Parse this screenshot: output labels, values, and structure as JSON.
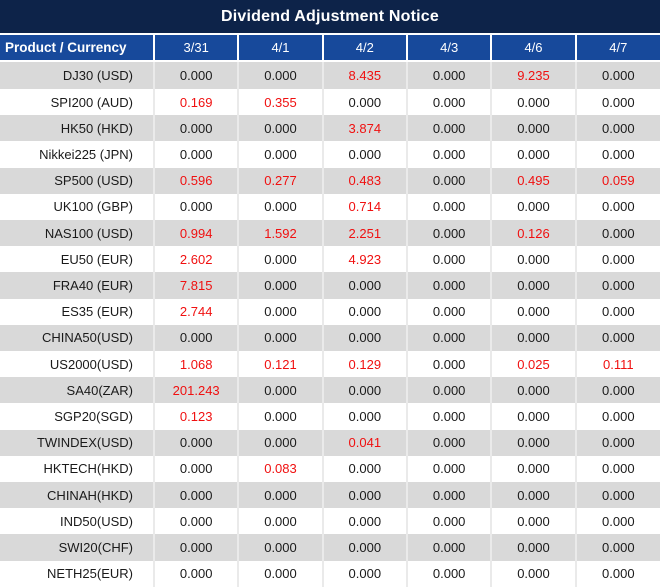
{
  "title": "Dividend Adjustment Notice",
  "columns": [
    "Product / Currency",
    "3/31",
    "4/1",
    "4/2",
    "4/3",
    "4/6",
    "4/7"
  ],
  "rows": [
    {
      "product": "DJ30 (USD)",
      "values": [
        "0.000",
        "0.000",
        "8.435",
        "0.000",
        "9.235",
        "0.000"
      ],
      "red": [
        false,
        false,
        true,
        false,
        true,
        false
      ]
    },
    {
      "product": "SPI200 (AUD)",
      "values": [
        "0.169",
        "0.355",
        "0.000",
        "0.000",
        "0.000",
        "0.000"
      ],
      "red": [
        true,
        true,
        false,
        false,
        false,
        false
      ]
    },
    {
      "product": "HK50 (HKD)",
      "values": [
        "0.000",
        "0.000",
        "3.874",
        "0.000",
        "0.000",
        "0.000"
      ],
      "red": [
        false,
        false,
        true,
        false,
        false,
        false
      ]
    },
    {
      "product": "Nikkei225 (JPN)",
      "values": [
        "0.000",
        "0.000",
        "0.000",
        "0.000",
        "0.000",
        "0.000"
      ],
      "red": [
        false,
        false,
        false,
        false,
        false,
        false
      ]
    },
    {
      "product": "SP500 (USD)",
      "values": [
        "0.596",
        "0.277",
        "0.483",
        "0.000",
        "0.495",
        "0.059"
      ],
      "red": [
        true,
        true,
        true,
        false,
        true,
        true
      ]
    },
    {
      "product": "UK100 (GBP)",
      "values": [
        "0.000",
        "0.000",
        "0.714",
        "0.000",
        "0.000",
        "0.000"
      ],
      "red": [
        false,
        false,
        true,
        false,
        false,
        false
      ]
    },
    {
      "product": "NAS100 (USD)",
      "values": [
        "0.994",
        "1.592",
        "2.251",
        "0.000",
        "0.126",
        "0.000"
      ],
      "red": [
        true,
        true,
        true,
        false,
        true,
        false
      ]
    },
    {
      "product": "EU50 (EUR)",
      "values": [
        "2.602",
        "0.000",
        "4.923",
        "0.000",
        "0.000",
        "0.000"
      ],
      "red": [
        true,
        false,
        true,
        false,
        false,
        false
      ]
    },
    {
      "product": "FRA40 (EUR)",
      "values": [
        "7.815",
        "0.000",
        "0.000",
        "0.000",
        "0.000",
        "0.000"
      ],
      "red": [
        true,
        false,
        false,
        false,
        false,
        false
      ]
    },
    {
      "product": "ES35 (EUR)",
      "values": [
        "2.744",
        "0.000",
        "0.000",
        "0.000",
        "0.000",
        "0.000"
      ],
      "red": [
        true,
        false,
        false,
        false,
        false,
        false
      ]
    },
    {
      "product": "CHINA50(USD)",
      "values": [
        "0.000",
        "0.000",
        "0.000",
        "0.000",
        "0.000",
        "0.000"
      ],
      "red": [
        false,
        false,
        false,
        false,
        false,
        false
      ]
    },
    {
      "product": "US2000(USD)",
      "values": [
        "1.068",
        "0.121",
        "0.129",
        "0.000",
        "0.025",
        "0.111"
      ],
      "red": [
        true,
        true,
        true,
        false,
        true,
        true
      ]
    },
    {
      "product": "SA40(ZAR)",
      "values": [
        "201.243",
        "0.000",
        "0.000",
        "0.000",
        "0.000",
        "0.000"
      ],
      "red": [
        true,
        false,
        false,
        false,
        false,
        false
      ]
    },
    {
      "product": "SGP20(SGD)",
      "values": [
        "0.123",
        "0.000",
        "0.000",
        "0.000",
        "0.000",
        "0.000"
      ],
      "red": [
        true,
        false,
        false,
        false,
        false,
        false
      ]
    },
    {
      "product": "TWINDEX(USD)",
      "values": [
        "0.000",
        "0.000",
        "0.041",
        "0.000",
        "0.000",
        "0.000"
      ],
      "red": [
        false,
        false,
        true,
        false,
        false,
        false
      ]
    },
    {
      "product": "HKTECH(HKD)",
      "values": [
        "0.000",
        "0.083",
        "0.000",
        "0.000",
        "0.000",
        "0.000"
      ],
      "red": [
        false,
        true,
        false,
        false,
        false,
        false
      ]
    },
    {
      "product": "CHINAH(HKD)",
      "values": [
        "0.000",
        "0.000",
        "0.000",
        "0.000",
        "0.000",
        "0.000"
      ],
      "red": [
        false,
        false,
        false,
        false,
        false,
        false
      ]
    },
    {
      "product": "IND50(USD)",
      "values": [
        "0.000",
        "0.000",
        "0.000",
        "0.000",
        "0.000",
        "0.000"
      ],
      "red": [
        false,
        false,
        false,
        false,
        false,
        false
      ]
    },
    {
      "product": "SWI20(CHF)",
      "values": [
        "0.000",
        "0.000",
        "0.000",
        "0.000",
        "0.000",
        "0.000"
      ],
      "red": [
        false,
        false,
        false,
        false,
        false,
        false
      ]
    },
    {
      "product": "NETH25(EUR)",
      "values": [
        "0.000",
        "0.000",
        "0.000",
        "0.000",
        "0.000",
        "0.000"
      ],
      "red": [
        false,
        false,
        false,
        false,
        false,
        false
      ]
    }
  ],
  "colors": {
    "title_bg": "#0D2349",
    "header_bg": "#17499B",
    "header_text": "#FFFFFF",
    "stripe": "#D9D9D9",
    "red": "#F01010",
    "value_text": "#1A1A1A",
    "grid": "#EAEAEA"
  }
}
